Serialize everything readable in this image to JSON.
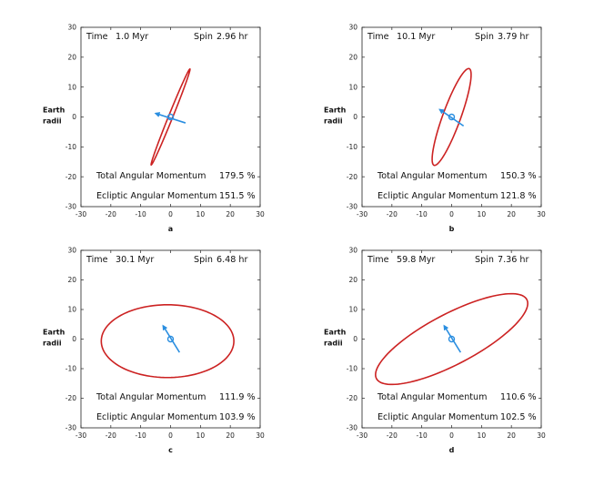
{
  "colors": {
    "ellipse": "#cc2222",
    "arrow": "#2a8ee0",
    "frame": "#222222",
    "text": "#111111"
  },
  "chart_data": [
    {
      "type": "scatter",
      "panel_label": "a",
      "time_label": "Time",
      "time_value": "1.0 Myr",
      "spin_label": "Spin",
      "spin_value": "2.96 hr",
      "total_label": "Total Angular Momentum",
      "total_value": "179.5 %",
      "ecliptic_label": "Ecliptic Angular Momentum",
      "ecliptic_value": "151.5 %",
      "ylabel": [
        "Earth",
        "radii"
      ],
      "xlim": [
        -30,
        30
      ],
      "ylim": [
        -30,
        30
      ],
      "xticks": [
        "-30",
        "-20",
        "-10",
        "0",
        "10",
        "20",
        "30"
      ],
      "yticks": [
        "30",
        "20",
        "10",
        "0",
        "-10",
        "-20",
        "-30"
      ],
      "ellipse": {
        "center": [
          0,
          0
        ],
        "semi_major": 17.3,
        "semi_minor": 0.7,
        "angle_deg": 68
      },
      "arrow": {
        "from": [
          5,
          -2
        ],
        "to": [
          -5,
          1.2
        ]
      },
      "center_marker": [
        0,
        0
      ]
    },
    {
      "type": "scatter",
      "panel_label": "b",
      "time_label": "Time",
      "time_value": "10.1 Myr",
      "spin_label": "Spin",
      "spin_value": "3.79 hr",
      "total_label": "Total Angular Momentum",
      "total_value": "150.3 %",
      "ecliptic_label": "Ecliptic Angular Momentum",
      "ecliptic_value": "121.8 %",
      "ylabel": [
        "Earth",
        "radii"
      ],
      "xlim": [
        -30,
        30
      ],
      "ylim": [
        -30,
        30
      ],
      "xticks": [
        "-30",
        "-20",
        "-10",
        "0",
        "10",
        "20",
        "30"
      ],
      "yticks": [
        "30",
        "20",
        "10",
        "0",
        "-10",
        "-20",
        "-30"
      ],
      "ellipse": {
        "center": [
          0,
          0
        ],
        "semi_major": 17.2,
        "semi_minor": 3.0,
        "angle_deg": 70
      },
      "arrow": {
        "from": [
          4,
          -3
        ],
        "to": [
          -4,
          2.5
        ]
      },
      "center_marker": [
        0,
        0
      ]
    },
    {
      "type": "scatter",
      "panel_label": "c",
      "time_label": "Time",
      "time_value": "30.1 Myr",
      "spin_label": "Spin",
      "spin_value": "6.48 hr",
      "total_label": "Total Angular Momentum",
      "total_value": "111.9 %",
      "ecliptic_label": "Ecliptic Angular Momentum",
      "ecliptic_value": "103.9 %",
      "ylabel": [
        "Earth",
        "radii"
      ],
      "xlim": [
        -30,
        30
      ],
      "ylim": [
        -30,
        30
      ],
      "xticks": [
        "-30",
        "-20",
        "-10",
        "0",
        "10",
        "20",
        "30"
      ],
      "yticks": [
        "30",
        "20",
        "10",
        "0",
        "-10",
        "-20",
        "-30"
      ],
      "ellipse": {
        "center": [
          -1,
          -0.7
        ],
        "semi_major": 22.2,
        "semi_minor": 12.3,
        "angle_deg": 0
      },
      "arrow": {
        "from": [
          3,
          -4.5
        ],
        "to": [
          -2.5,
          4.5
        ]
      },
      "center_marker": [
        0,
        0
      ]
    },
    {
      "type": "scatter",
      "panel_label": "d",
      "time_label": "Time",
      "time_value": "59.8 Myr",
      "spin_label": "Spin",
      "spin_value": "7.36 hr",
      "total_label": "Total Angular Momentum",
      "total_value": "110.6 %",
      "ecliptic_label": "Ecliptic Angular Momentum",
      "ecliptic_value": "102.5 %",
      "ylabel": [
        "Earth",
        "radii"
      ],
      "xlim": [
        -30,
        30
      ],
      "ylim": [
        -30,
        30
      ],
      "xticks": [
        "-30",
        "-20",
        "-10",
        "0",
        "10",
        "20",
        "30"
      ],
      "yticks": [
        "30",
        "20",
        "10",
        "0",
        "-10",
        "-20",
        "-30"
      ],
      "ellipse": {
        "center": [
          0,
          0
        ],
        "semi_major": 28.5,
        "semi_minor": 8.5,
        "angle_deg": 28
      },
      "arrow": {
        "from": [
          3,
          -4.5
        ],
        "to": [
          -2.5,
          4.5
        ]
      },
      "center_marker": [
        0,
        0
      ]
    }
  ]
}
